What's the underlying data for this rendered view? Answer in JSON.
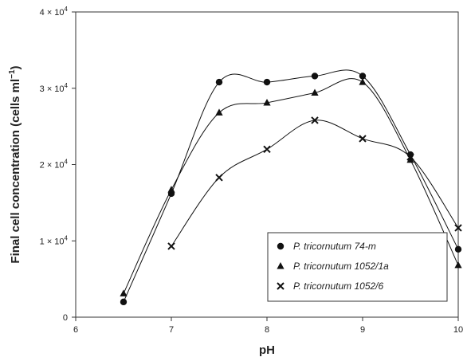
{
  "chart_data": {
    "type": "line",
    "title": "",
    "xlabel": "pH",
    "ylabel_main": "Final cell concentration (cells ml",
    "ylabel_sup": "−1",
    "ylabel_close": ")",
    "xlim": [
      6,
      10
    ],
    "ylim": [
      0,
      40000
    ],
    "x_ticks": [
      6,
      7,
      8,
      9,
      10
    ],
    "x_tick_labels": [
      "6",
      "7",
      "8",
      "9",
      "10"
    ],
    "y_ticks": [
      {
        "value": 0,
        "base": "0",
        "exp": ""
      },
      {
        "value": 10000,
        "base": "1 × 10",
        "exp": "4"
      },
      {
        "value": 20000,
        "base": "2 × 10",
        "exp": "4"
      },
      {
        "value": 30000,
        "base": "3 × 10",
        "exp": "4"
      },
      {
        "value": 40000,
        "base": "4 × 10",
        "exp": "4"
      }
    ],
    "grid": false,
    "legend_position": "bottom-right",
    "series": [
      {
        "name": "P. tricornutum 74-m",
        "marker": "circle",
        "x": [
          6.5,
          7.0,
          7.5,
          8.0,
          8.5,
          9.0,
          9.5,
          10.0
        ],
        "y": [
          2000,
          16200,
          30800,
          30800,
          31600,
          31600,
          21300,
          8900
        ]
      },
      {
        "name": "P. tricornutum 1052/1a",
        "marker": "triangle",
        "x": [
          6.5,
          7.0,
          7.5,
          8.0,
          8.5,
          9.0,
          9.5,
          10.0
        ],
        "y": [
          3100,
          16700,
          26800,
          28100,
          29400,
          30800,
          20600,
          6800
        ]
      },
      {
        "name": "P. tricornutum 1052/6",
        "marker": "cross",
        "x": [
          7.0,
          7.5,
          8.0,
          8.5,
          9.0,
          9.5,
          10.0
        ],
        "y": [
          9300,
          18300,
          22000,
          25800,
          23400,
          21000,
          11700
        ]
      }
    ]
  }
}
